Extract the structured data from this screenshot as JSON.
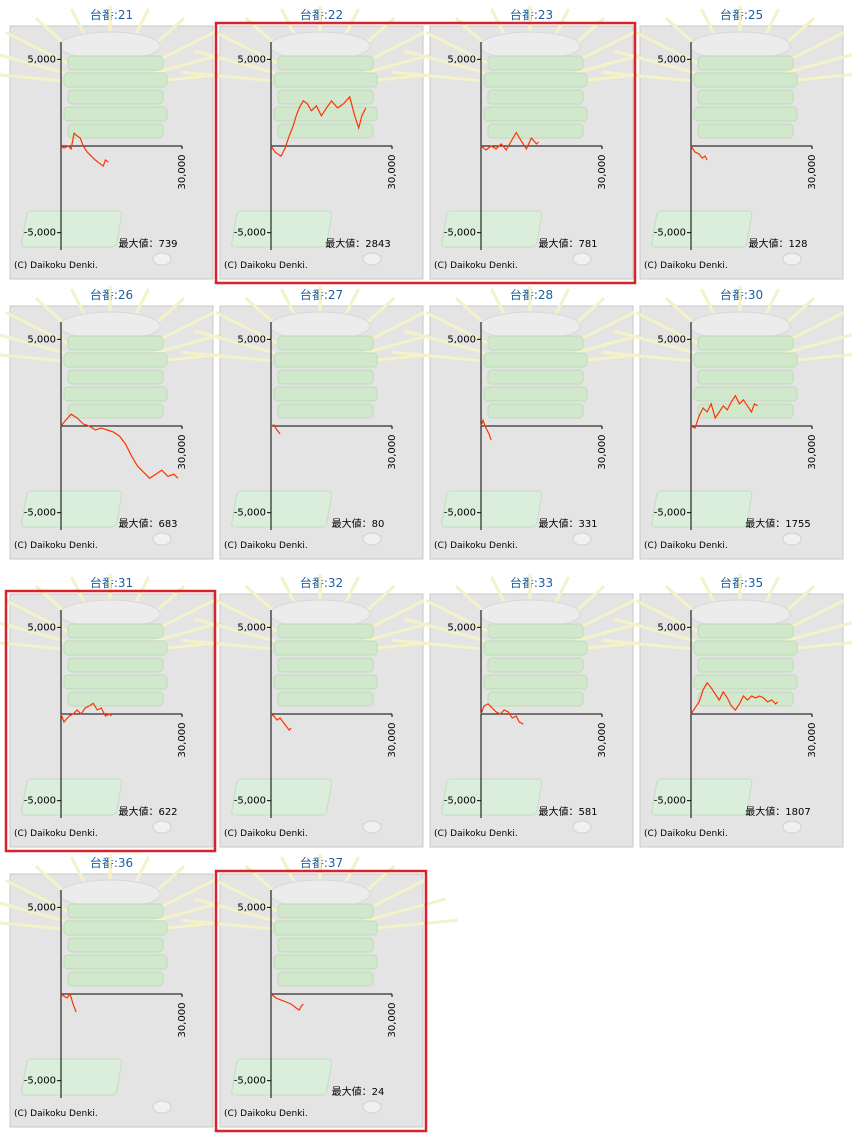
{
  "chart_data": [
    {
      "type": "line",
      "title": "台番:21",
      "max_label": "最大値：739",
      "copyright": "(C) Daikoku Denki.",
      "color": "#ff3300",
      "xlim": [
        0,
        30000
      ],
      "xticks": [
        {
          "value": 30000,
          "label": "30,000"
        }
      ],
      "ylim": [
        -6000,
        6000
      ],
      "yticks": [
        {
          "value": 5000,
          "label": "5,000"
        },
        {
          "value": -5000,
          "label": "-5,000"
        }
      ],
      "x": [
        0,
        750,
        1750,
        2500,
        3250,
        4000,
        4750,
        5500,
        6500,
        7500,
        8500,
        9500,
        10500,
        11000,
        11750
      ],
      "values": [
        0,
        -120,
        0,
        -170,
        740,
        580,
        460,
        0,
        -350,
        -580,
        -810,
        -990,
        -1160,
        -810,
        -930
      ]
    },
    {
      "type": "line",
      "title": "台番:22",
      "max_label": "最大値：2843",
      "copyright": "(C) Daikoku Denki.",
      "color": "#ff3300",
      "xlim": [
        0,
        30000
      ],
      "xticks": [
        {
          "value": 30000,
          "label": "30,000"
        }
      ],
      "ylim": [
        -6000,
        6000
      ],
      "yticks": [
        {
          "value": 5000,
          "label": "5,000"
        },
        {
          "value": -5000,
          "label": "-5,000"
        }
      ],
      "x": [
        0,
        1000,
        2500,
        3500,
        4500,
        5500,
        6250,
        7000,
        8000,
        9000,
        10000,
        11250,
        12500,
        13750,
        15000,
        16500,
        18000,
        19500,
        20750,
        21750,
        22500,
        23500
      ],
      "values": [
        0,
        -350,
        -580,
        -120,
        580,
        1160,
        1740,
        2200,
        2610,
        2440,
        2030,
        2320,
        1740,
        2200,
        2610,
        2200,
        2440,
        2840,
        1740,
        1040,
        1740,
        2200
      ]
    },
    {
      "type": "line",
      "title": "台番:23",
      "max_label": "最大値：781",
      "copyright": "(C) Daikoku Denki.",
      "color": "#ff3300",
      "xlim": [
        0,
        30000
      ],
      "xticks": [
        {
          "value": 30000,
          "label": "30,000"
        }
      ],
      "ylim": [
        -6000,
        6000
      ],
      "yticks": [
        {
          "value": 5000,
          "label": "5,000"
        },
        {
          "value": -5000,
          "label": "-5,000"
        }
      ],
      "x": [
        0,
        1250,
        2500,
        3750,
        5000,
        6250,
        7500,
        8750,
        10000,
        11250,
        12500,
        13750,
        14250
      ],
      "values": [
        0,
        -230,
        0,
        -170,
        120,
        -230,
        290,
        780,
        290,
        -170,
        460,
        120,
        230
      ]
    },
    {
      "type": "line",
      "title": "台番:25",
      "max_label": "最大値：128",
      "copyright": "(C) Daikoku Denki.",
      "color": "#ff3300",
      "xlim": [
        0,
        30000
      ],
      "xticks": [
        {
          "value": 30000,
          "label": "30,000"
        }
      ],
      "ylim": [
        -6000,
        6000
      ],
      "yticks": [
        {
          "value": 5000,
          "label": "5,000"
        },
        {
          "value": -5000,
          "label": "-5,000"
        }
      ],
      "x": [
        0,
        1000,
        2000,
        2750,
        3500,
        4000
      ],
      "values": [
        0,
        -350,
        -460,
        -700,
        -580,
        -810
      ]
    },
    {
      "type": "line",
      "title": "台番:26",
      "max_label": "最大値：683",
      "copyright": "(C) Daikoku Denki.",
      "color": "#ff3300",
      "xlim": [
        0,
        30000
      ],
      "xticks": [
        {
          "value": 30000,
          "label": "30,000"
        }
      ],
      "ylim": [
        -6000,
        6000
      ],
      "yticks": [
        {
          "value": 5000,
          "label": "5,000"
        },
        {
          "value": -5000,
          "label": "-5,000"
        }
      ],
      "x": [
        0,
        1000,
        2500,
        4000,
        5500,
        7000,
        8500,
        10000,
        11500,
        13000,
        14500,
        16000,
        17500,
        19000,
        20500,
        22000,
        23500,
        25000,
        26500,
        28000,
        29000
      ],
      "values": [
        0,
        290,
        680,
        460,
        120,
        0,
        -230,
        -120,
        -230,
        -350,
        -580,
        -1040,
        -1740,
        -2320,
        -2670,
        -3020,
        -2780,
        -2550,
        -2900,
        -2780,
        -3020
      ]
    },
    {
      "type": "line",
      "title": "台番:27",
      "max_label": "最大値：80",
      "copyright": "(C) Daikoku Denki.",
      "color": "#ff3300",
      "xlim": [
        0,
        30000
      ],
      "xticks": [
        {
          "value": 30000,
          "label": "30,000"
        }
      ],
      "ylim": [
        -6000,
        6000
      ],
      "yticks": [
        {
          "value": 5000,
          "label": "5,000"
        },
        {
          "value": -5000,
          "label": "-5,000"
        }
      ],
      "x": [
        0,
        750,
        1500,
        2250
      ],
      "values": [
        0,
        60,
        -230,
        -460
      ]
    },
    {
      "type": "line",
      "title": "台番:28",
      "max_label": "最大値：331",
      "copyright": "(C) Daikoku Denki.",
      "color": "#ff3300",
      "xlim": [
        0,
        30000
      ],
      "xticks": [
        {
          "value": 30000,
          "label": "30,000"
        }
      ],
      "ylim": [
        -6000,
        6000
      ],
      "yticks": [
        {
          "value": 5000,
          "label": "5,000"
        },
        {
          "value": -5000,
          "label": "-5,000"
        }
      ],
      "x": [
        0,
        500,
        1250,
        2000,
        2500
      ],
      "values": [
        0,
        330,
        -120,
        -460,
        -810
      ]
    },
    {
      "type": "line",
      "title": "台番:30",
      "max_label": "最大値：1755",
      "copyright": "(C) Daikoku Denki.",
      "color": "#ff3300",
      "xlim": [
        0,
        30000
      ],
      "xticks": [
        {
          "value": 30000,
          "label": "30,000"
        }
      ],
      "ylim": [
        -6000,
        6000
      ],
      "yticks": [
        {
          "value": 5000,
          "label": "5,000"
        },
        {
          "value": -5000,
          "label": "-5,000"
        }
      ],
      "x": [
        0,
        1000,
        2000,
        3000,
        4000,
        5000,
        6000,
        7000,
        8000,
        9000,
        10000,
        11000,
        12000,
        13000,
        14000,
        15000,
        15750,
        16500
      ],
      "values": [
        0,
        -120,
        580,
        1040,
        810,
        1280,
        460,
        810,
        1160,
        930,
        1390,
        1750,
        1280,
        1510,
        1160,
        810,
        1280,
        1160
      ]
    },
    {
      "type": "line",
      "title": "台番:31",
      "max_label": "最大値：622",
      "copyright": "(C) Daikoku Denki.",
      "color": "#ff3300",
      "xlim": [
        0,
        30000
      ],
      "xticks": [
        {
          "value": 30000,
          "label": "30,000"
        }
      ],
      "ylim": [
        -6000,
        6000
      ],
      "yticks": [
        {
          "value": 5000,
          "label": "5,000"
        },
        {
          "value": -5000,
          "label": "-5,000"
        }
      ],
      "x": [
        0,
        750,
        2000,
        3000,
        4000,
        5000,
        6000,
        7000,
        8000,
        9000,
        10000,
        11000,
        12000,
        12500
      ],
      "values": [
        0,
        -460,
        -120,
        0,
        230,
        0,
        350,
        460,
        620,
        230,
        350,
        -120,
        0,
        -120
      ]
    },
    {
      "type": "line",
      "title": "台番:32",
      "copyright": "(C) Daikoku Denki.",
      "color": "#ff3300",
      "xlim": [
        0,
        30000
      ],
      "xticks": [
        {
          "value": 30000,
          "label": "30,000"
        }
      ],
      "ylim": [
        -6000,
        6000
      ],
      "yticks": [
        {
          "value": 5000,
          "label": "5,000"
        },
        {
          "value": -5000,
          "label": "-5,000"
        }
      ],
      "x": [
        0,
        750,
        1500,
        2250,
        3000,
        3750,
        4500,
        5000
      ],
      "values": [
        0,
        -120,
        -350,
        -230,
        -460,
        -700,
        -930,
        -810
      ]
    },
    {
      "type": "line",
      "title": "台番:33",
      "max_label": "最大値：581",
      "copyright": "(C) Daikoku Denki.",
      "color": "#ff3300",
      "xlim": [
        0,
        30000
      ],
      "xticks": [
        {
          "value": 30000,
          "label": "30,000"
        }
      ],
      "ylim": [
        -6000,
        6000
      ],
      "yticks": [
        {
          "value": 5000,
          "label": "5,000"
        },
        {
          "value": -5000,
          "label": "-5,000"
        }
      ],
      "x": [
        0,
        750,
        1750,
        2750,
        3750,
        4750,
        5750,
        6750,
        7750,
        8750,
        9500,
        10500
      ],
      "values": [
        0,
        460,
        580,
        350,
        120,
        0,
        230,
        120,
        -230,
        -120,
        -460,
        -580
      ]
    },
    {
      "type": "line",
      "title": "台番:35",
      "max_label": "最大値：1807",
      "copyright": "(C) Daikoku Denki.",
      "color": "#ff3300",
      "xlim": [
        0,
        30000
      ],
      "xticks": [
        {
          "value": 30000,
          "label": "30,000"
        }
      ],
      "ylim": [
        -6000,
        6000
      ],
      "yticks": [
        {
          "value": 5000,
          "label": "5,000"
        },
        {
          "value": -5000,
          "label": "-5,000"
        }
      ],
      "x": [
        0,
        1000,
        2000,
        3000,
        4000,
        5000,
        6000,
        7000,
        8000,
        9000,
        10000,
        11000,
        12000,
        13000,
        14000,
        15000,
        16000,
        17000,
        18000,
        19000,
        20000,
        21000,
        21500
      ],
      "values": [
        0,
        350,
        700,
        1390,
        1800,
        1510,
        1160,
        810,
        1280,
        930,
        460,
        230,
        580,
        1040,
        810,
        1040,
        930,
        1040,
        930,
        700,
        810,
        580,
        700
      ]
    },
    {
      "type": "line",
      "title": "台番:36",
      "copyright": "(C) Daikoku Denki.",
      "color": "#ff3300",
      "xlim": [
        0,
        30000
      ],
      "xticks": [
        {
          "value": 30000,
          "label": "30,000"
        }
      ],
      "ylim": [
        -6000,
        6000
      ],
      "yticks": [
        {
          "value": 5000,
          "label": "5,000"
        },
        {
          "value": -5000,
          "label": "-5,000"
        }
      ],
      "x": [
        0,
        750,
        1500,
        2250,
        3000,
        3750
      ],
      "values": [
        0,
        -120,
        -230,
        0,
        -580,
        -1040
      ]
    },
    {
      "type": "line",
      "title": "台番:37",
      "max_label": "最大値：24",
      "copyright": "(C) Daikoku Denki.",
      "color": "#ff3300",
      "xlim": [
        0,
        30000
      ],
      "xticks": [
        {
          "value": 30000,
          "label": "30,000"
        }
      ],
      "ylim": [
        -6000,
        6000
      ],
      "yticks": [
        {
          "value": 5000,
          "label": "5,000"
        },
        {
          "value": -5000,
          "label": "-5,000"
        }
      ],
      "x": [
        0,
        1250,
        2500,
        3750,
        5000,
        6250,
        7000,
        7500,
        8000
      ],
      "values": [
        0,
        -230,
        -350,
        -460,
        -580,
        -810,
        -930,
        -700,
        -580
      ]
    }
  ]
}
